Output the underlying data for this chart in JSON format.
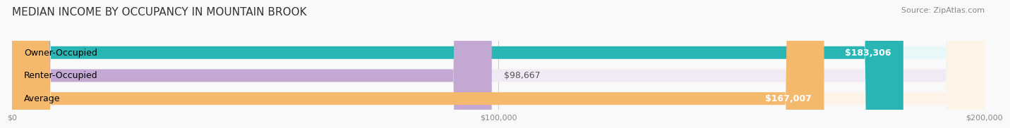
{
  "title": "MEDIAN INCOME BY OCCUPANCY IN MOUNTAIN BROOK",
  "source": "Source: ZipAtlas.com",
  "categories": [
    "Owner-Occupied",
    "Renter-Occupied",
    "Average"
  ],
  "values": [
    183306,
    98667,
    167007
  ],
  "labels": [
    "$183,306",
    "$98,667",
    "$167,007"
  ],
  "bar_colors": [
    "#2ab5b5",
    "#c4a8d4",
    "#f5b96e"
  ],
  "bar_bg_colors": [
    "#e8f7f7",
    "#f0eaf5",
    "#fdf3e7"
  ],
  "xlim": [
    0,
    200000
  ],
  "xtick_labels": [
    "$0",
    "$100,000",
    "$200,000"
  ],
  "title_fontsize": 11,
  "source_fontsize": 8,
  "label_fontsize": 9,
  "bar_height": 0.55,
  "background_color": "#f9f9f9"
}
